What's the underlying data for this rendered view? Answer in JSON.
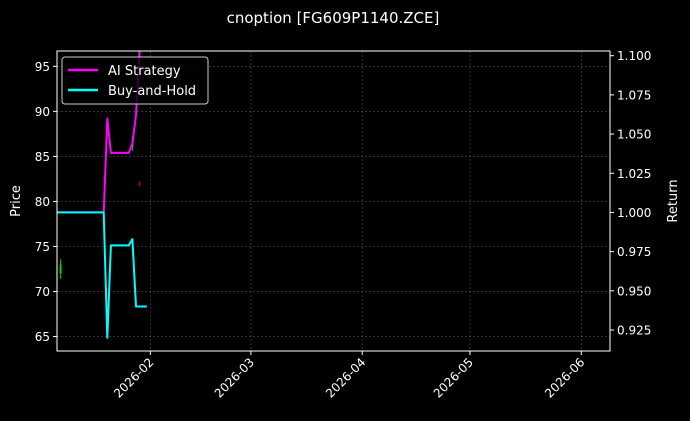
{
  "chart_data": {
    "type": "line",
    "title": "cnoption [FG609P1140.ZCE]",
    "ylabel": "Price",
    "y2label": "Return",
    "xlim": [
      "2026-01-06",
      "2026-06-09"
    ],
    "ylim": [
      63.4,
      96.7
    ],
    "y2lim": [
      0.9116,
      1.103
    ],
    "x_ticks": [
      "2026-02-01",
      "2026-03-01",
      "2026-04-01",
      "2026-05-01",
      "2026-06-01"
    ],
    "x_tick_labels": [
      "2026-02",
      "2026-03",
      "2026-04",
      "2026-05",
      "2026-06"
    ],
    "y_ticks": [
      65,
      70,
      75,
      80,
      85,
      90,
      95
    ],
    "y2_ticks": [
      0.925,
      0.95,
      0.975,
      1.0,
      1.025,
      1.05,
      1.075,
      1.1
    ],
    "y2_tick_labels": [
      "0.925",
      "0.950",
      "0.975",
      "1.000",
      "1.025",
      "1.050",
      "1.075",
      "1.100"
    ],
    "grid": true,
    "legend_position": "top-left",
    "colors": {
      "background": "#000000",
      "axis": "#ffffff",
      "grid": "#555555",
      "up": "#00cc00",
      "down": "#cc0000"
    },
    "candles": [
      {
        "date": "2026-01-07",
        "open": 72.0,
        "close": 73.0,
        "high": 73.6,
        "low": 71.4,
        "dir": "up"
      },
      {
        "date": "2026-01-27",
        "open": 86.0,
        "close": 86.6,
        "high": 87.3,
        "low": 85.6,
        "dir": "up"
      },
      {
        "date": "2026-01-29",
        "open": 82.0,
        "close": 81.9,
        "high": 82.2,
        "low": 81.7,
        "dir": "down"
      }
    ],
    "series": [
      {
        "name": "AI Strategy",
        "color": "#ff00ff",
        "axis": "right",
        "x": [
          "2026-01-06",
          "2026-01-19",
          "2026-01-20",
          "2026-01-21",
          "2026-01-22",
          "2026-01-26",
          "2026-01-27",
          "2026-01-28",
          "2026-01-29"
        ],
        "values": [
          1.0,
          1.0,
          1.06,
          1.038,
          1.038,
          1.038,
          1.044,
          1.062,
          1.103
        ]
      },
      {
        "name": "Buy-and-Hold",
        "color": "#00ffff",
        "axis": "right",
        "x": [
          "2026-01-06",
          "2026-01-19",
          "2026-01-20",
          "2026-01-21",
          "2026-01-26",
          "2026-01-27",
          "2026-01-28",
          "2026-01-31"
        ],
        "values": [
          1.0,
          1.0,
          0.92,
          0.979,
          0.979,
          0.983,
          0.94,
          0.94
        ]
      }
    ]
  }
}
